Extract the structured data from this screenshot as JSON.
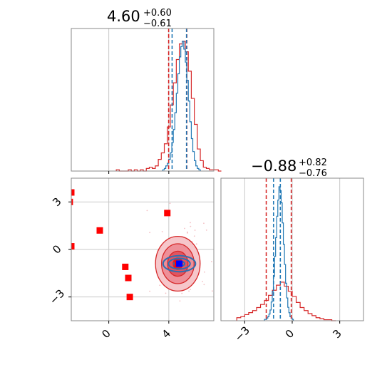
{
  "chart_data": [
    {
      "type": "histogram",
      "panel": "top-left",
      "title_main": "4.60",
      "title_plus": "+0.60",
      "title_minus": "−0.61",
      "xlim": [
        -2.5,
        7.0
      ],
      "xticks": [
        0,
        4
      ],
      "grid": true,
      "series": [
        {
          "color": "#d62728",
          "bin_width": 0.2,
          "x_start": 0.5,
          "counts": [
            1,
            0,
            0,
            0,
            1,
            0,
            1,
            0,
            1,
            0,
            2,
            3,
            2,
            4,
            9,
            14,
            21,
            34,
            51,
            68,
            86,
            98,
            100,
            92,
            77,
            56,
            36,
            17,
            8,
            3,
            2,
            1,
            1,
            1,
            0
          ],
          "quantile_lines": [
            3.99,
            5.2
          ]
        },
        {
          "color": "#1f77b4",
          "bin_width": 0.1,
          "x_start": 3.6,
          "counts": [
            1,
            2,
            4,
            6,
            9,
            14,
            22,
            32,
            45,
            60,
            75,
            88,
            96,
            100,
            94,
            84,
            70,
            54,
            38,
            25,
            15,
            8,
            4,
            2,
            1
          ],
          "quantile_lines": [
            4.22,
            5.18
          ]
        }
      ]
    },
    {
      "type": "contour",
      "panel": "bottom-left",
      "xlim": [
        -2.5,
        7.0
      ],
      "ylim": [
        -4.5,
        4.5
      ],
      "xticks": [
        0,
        4
      ],
      "yticks": [
        -3,
        0,
        3
      ],
      "xtick_labels": [
        "0",
        "4"
      ],
      "ytick_labels": [
        "−3",
        "0",
        "3"
      ],
      "grid": true,
      "red_contour_center": [
        4.6,
        -0.9
      ],
      "red_contour_sigma": [
        0.62,
        0.72
      ],
      "blue_contour_center": [
        4.7,
        -0.9
      ],
      "blue_contour_sigma": [
        0.6,
        0.28
      ],
      "red_points": [
        [
          -2.5,
          3.6
        ],
        [
          -2.6,
          3.0
        ],
        [
          -2.5,
          0.2
        ],
        [
          -0.6,
          1.2
        ],
        [
          1.1,
          -1.1
        ],
        [
          1.3,
          -1.8
        ],
        [
          1.4,
          -3.0
        ],
        [
          3.9,
          2.3
        ],
        [
          4.6,
          -0.9
        ]
      ],
      "blue_points": [
        [
          4.7,
          -0.9
        ]
      ]
    },
    {
      "type": "histogram",
      "panel": "bottom-right",
      "title_main": "−0.88",
      "title_plus": "+0.82",
      "title_minus": "−0.76",
      "xlim": [
        -4.5,
        4.5
      ],
      "xticks": [
        -3,
        0,
        3
      ],
      "xtick_labels": [
        "−3",
        "0",
        "3"
      ],
      "grid": true,
      "series": [
        {
          "color": "#d62728",
          "bin_width": 0.25,
          "x_start": -3.5,
          "counts": [
            3,
            4,
            6,
            8,
            10,
            13,
            16,
            20,
            25,
            30,
            35,
            38,
            34,
            29,
            24,
            18,
            13,
            10,
            7,
            5,
            3,
            2,
            1,
            1,
            0
          ],
          "quantile_lines": [
            -1.64,
            -0.06
          ]
        },
        {
          "color": "#1f77b4",
          "bin_width": 0.07,
          "x_start": -1.75,
          "counts": [
            1,
            1,
            2,
            3,
            5,
            8,
            14,
            22,
            33,
            48,
            62,
            78,
            90,
            100,
            97,
            88,
            73,
            57,
            42,
            28,
            17,
            10,
            6,
            3,
            2,
            1
          ],
          "quantile_lines": [
            -1.18,
            -0.75
          ]
        }
      ]
    }
  ]
}
